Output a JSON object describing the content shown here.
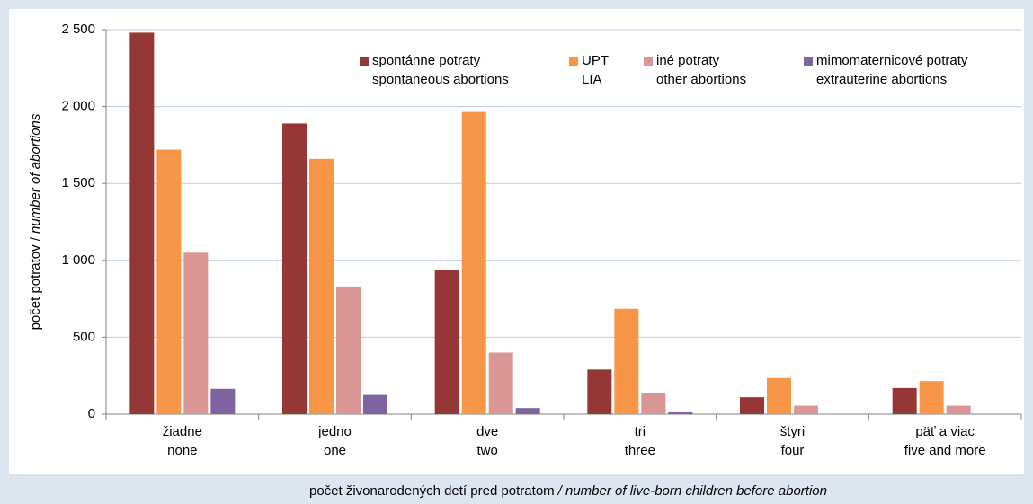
{
  "chart_data": {
    "type": "bar",
    "ylabel": [
      "počet potratov /",
      "number of abortions"
    ],
    "xlabel": [
      "počet živonarodených detí pred potratom",
      "/ number of live-born children before abortion"
    ],
    "categories": [
      [
        "žiadne",
        "none"
      ],
      [
        "jedno",
        "one"
      ],
      [
        "dve",
        "two"
      ],
      [
        "tri",
        "three"
      ],
      [
        "štyri",
        "four"
      ],
      [
        "päť a viac",
        "five and more"
      ]
    ],
    "series": [
      {
        "name": [
          "spontánne potraty",
          "spontaneous abortions"
        ],
        "color": "#953735",
        "values": [
          2480,
          1890,
          940,
          290,
          110,
          170
        ]
      },
      {
        "name": [
          "UPT",
          "LIA"
        ],
        "color": "#f79646",
        "values": [
          1720,
          1660,
          1965,
          685,
          235,
          215
        ]
      },
      {
        "name": [
          "iné potraty",
          "other abortions"
        ],
        "color": "#d99694",
        "values": [
          1050,
          830,
          400,
          140,
          55,
          55
        ]
      },
      {
        "name": [
          "mimomaternicové potraty",
          "extrauterine abortions"
        ],
        "color": "#8064a2",
        "values": [
          165,
          125,
          40,
          12,
          0,
          0
        ]
      }
    ],
    "ylim": [
      0,
      2500
    ],
    "yticks": [
      0,
      500,
      {
        "value": 1000,
        "label": "1 000"
      },
      {
        "value": 1500,
        "label": "1 500"
      },
      {
        "value": 2000,
        "label": "2 000"
      },
      {
        "value": 2500,
        "label": "2 500"
      }
    ],
    "grid": true,
    "legend": "top-right"
  }
}
